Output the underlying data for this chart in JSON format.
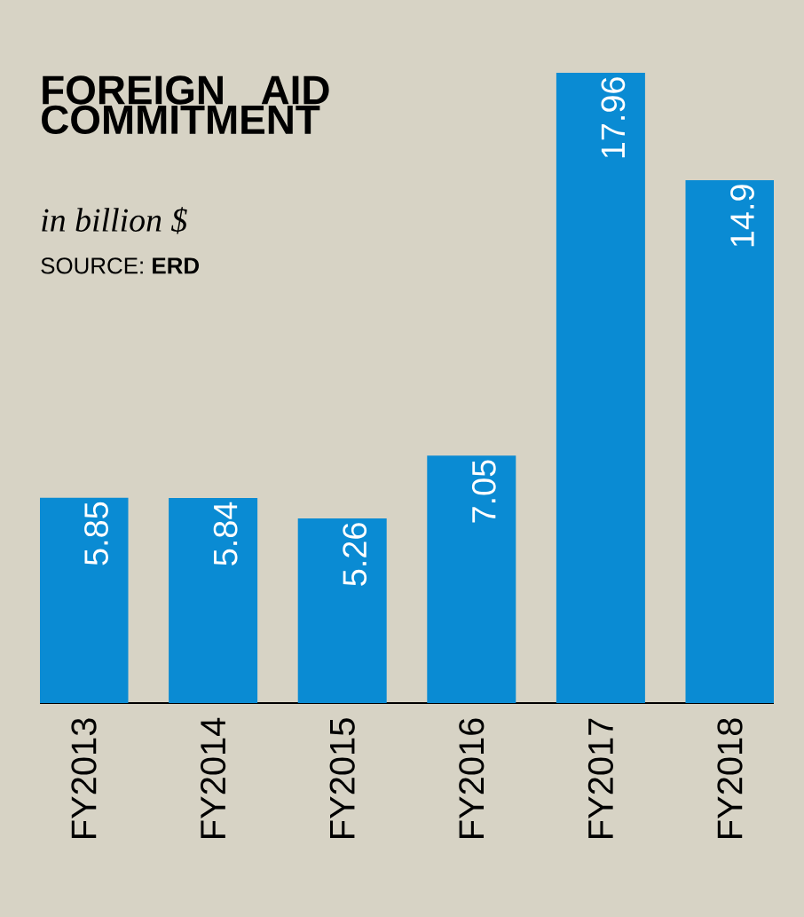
{
  "chart_data": {
    "type": "bar",
    "title": "FOREIGN AID COMMITMENT",
    "subtitle": "in billion $",
    "annotations": [
      "SOURCE: **ERD**"
    ],
    "categories": [
      "FY2013",
      "FY2014",
      "FY2015",
      "FY2016",
      "FY2017",
      "FY2018"
    ],
    "values": [
      5.85,
      5.84,
      5.26,
      7.05,
      17.96,
      14.9
    ],
    "color": "#0a8bd3",
    "data_labels": true
  }
}
